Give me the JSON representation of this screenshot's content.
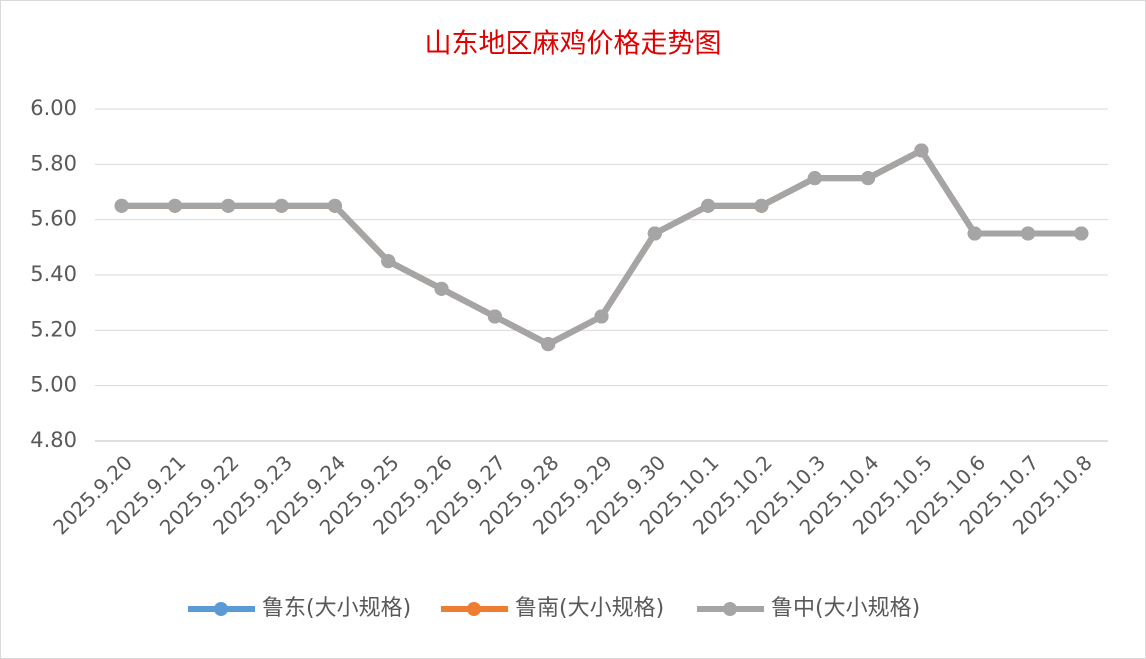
{
  "chart_data": {
    "type": "line",
    "title": "山东地区麻鸡价格走势图",
    "categories": [
      "2025.9.20",
      "2025.9.21",
      "2025.9.22",
      "2025.9.23",
      "2025.9.24",
      "2025.9.25",
      "2025.9.26",
      "2025.9.27",
      "2025.9.28",
      "2025.9.29",
      "2025.9.30",
      "2025.10.1",
      "2025.10.2",
      "2025.10.3",
      "2025.10.4",
      "2025.10.5",
      "2025.10.6",
      "2025.10.7",
      "2025.10.8"
    ],
    "series": [
      {
        "name": "鲁东(大小规格)",
        "color": "#5b9bd5",
        "values": [
          5.65,
          5.65,
          5.65,
          5.65,
          5.65,
          5.45,
          5.35,
          5.25,
          5.15,
          5.25,
          5.55,
          5.65,
          5.65,
          5.75,
          5.75,
          5.85,
          5.55,
          5.55,
          5.55
        ]
      },
      {
        "name": "鲁南(大小规格)",
        "color": "#ed7d31",
        "values": [
          5.65,
          5.65,
          5.65,
          5.65,
          5.65,
          5.45,
          5.35,
          5.25,
          5.15,
          5.25,
          5.55,
          5.65,
          5.65,
          5.75,
          5.75,
          5.85,
          5.55,
          5.55,
          5.55
        ]
      },
      {
        "name": "鲁中(大小规格)",
        "color": "#a5a5a5",
        "values": [
          5.65,
          5.65,
          5.65,
          5.65,
          5.65,
          5.45,
          5.35,
          5.25,
          5.15,
          5.25,
          5.55,
          5.65,
          5.65,
          5.75,
          5.75,
          5.85,
          5.55,
          5.55,
          5.55
        ]
      }
    ],
    "ylim": [
      4.8,
      6.0
    ],
    "yticks": [
      {
        "value": 4.8,
        "label": "4.80"
      },
      {
        "value": 5.0,
        "label": "5.00"
      },
      {
        "value": 5.2,
        "label": "5.20"
      },
      {
        "value": 5.4,
        "label": "5.40"
      },
      {
        "value": 5.6,
        "label": "5.60"
      },
      {
        "value": 5.8,
        "label": "5.80"
      },
      {
        "value": 6.0,
        "label": "6.00"
      }
    ],
    "grid": true,
    "legend": "bottom"
  }
}
